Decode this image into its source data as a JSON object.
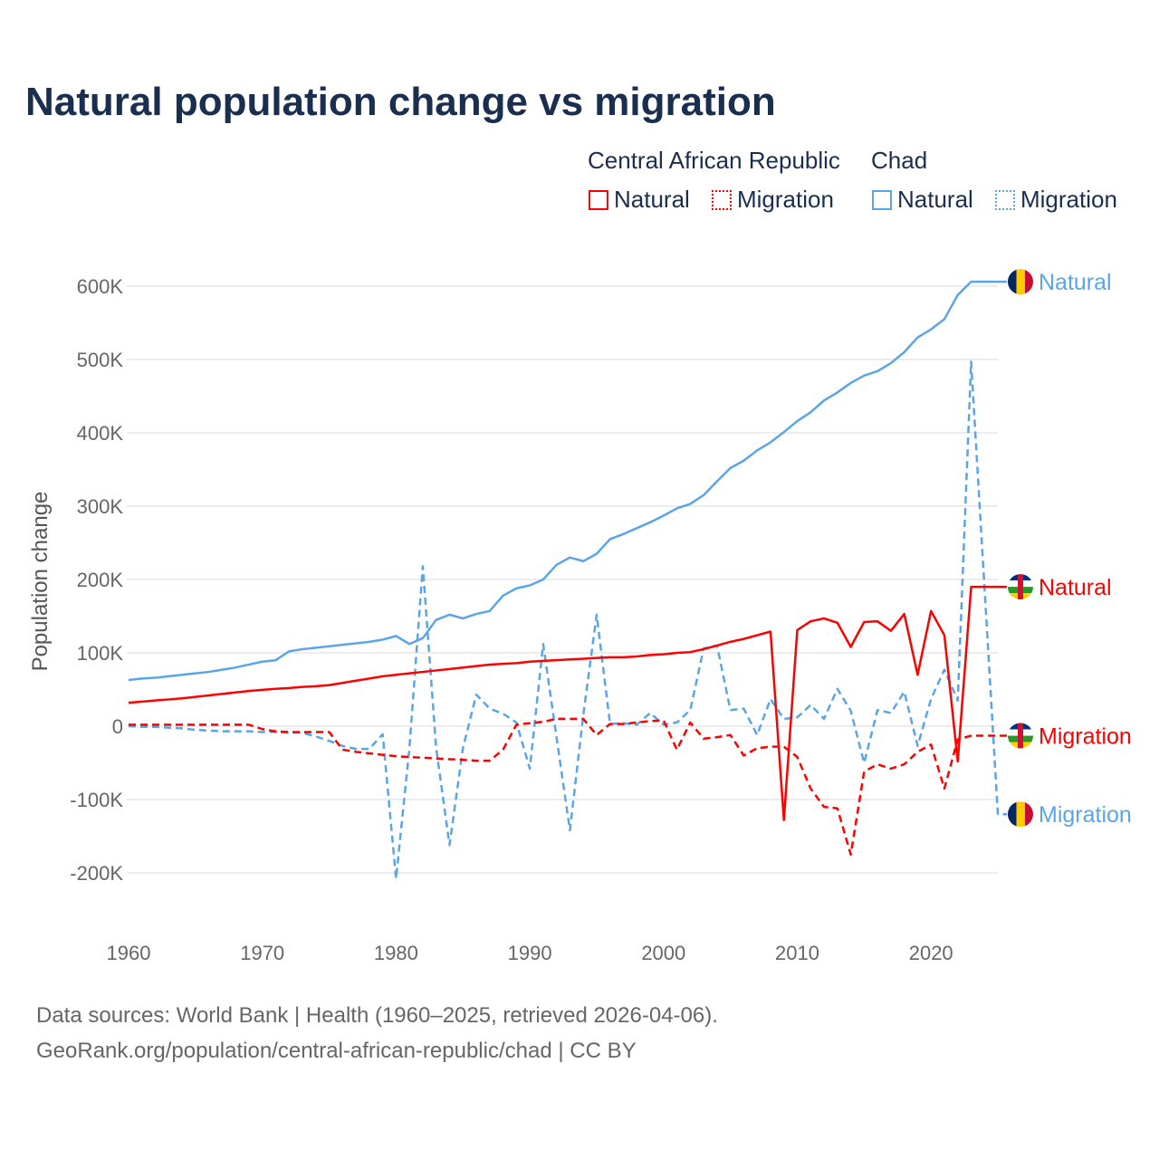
{
  "title": "Natural population change vs migration",
  "legend": {
    "groups": [
      {
        "label": "Central African Republic",
        "items": [
          "Natural",
          "Migration"
        ]
      },
      {
        "label": "Chad",
        "items": [
          "Natural",
          "Migration"
        ]
      }
    ]
  },
  "footer": {
    "line1": "Data sources: World Bank | Health (1960–2025, retrieved 2026-04-06).",
    "line2": "GeoRank.org/population/central-african-republic/chad | CC BY"
  },
  "chart_data": {
    "type": "line",
    "title": "Natural population change vs migration",
    "xlabel": "",
    "ylabel": "Population change",
    "xlim": [
      1960,
      2025
    ],
    "ylim": [
      -250000,
      650000
    ],
    "x_ticks": [
      1960,
      1970,
      1980,
      1990,
      2000,
      2010,
      2020
    ],
    "x_tick_labels": [
      "1960",
      "1970",
      "1980",
      "1990",
      "2000",
      "2010",
      "2020"
    ],
    "y_ticks": [
      -200000,
      -100000,
      0,
      100000,
      200000,
      300000,
      400000,
      500000,
      600000
    ],
    "y_tick_labels": [
      "-200K",
      "-100K",
      "0",
      "100K",
      "200K",
      "300K",
      "400K",
      "500K",
      "600K"
    ],
    "grid": true,
    "legend_position": "top-right",
    "start_year": 1960,
    "series": [
      {
        "name": "Natural",
        "country": "Chad",
        "color": "#5aa5e8",
        "dash": "solid",
        "end_label": "Natural",
        "values_k": [
          63,
          65,
          66,
          68,
          70,
          72,
          74,
          77,
          80,
          84,
          88,
          90,
          102,
          105,
          107,
          109,
          111,
          113,
          115,
          118,
          123,
          112,
          120,
          145,
          152,
          147,
          153,
          157,
          178,
          188,
          192,
          200,
          220,
          230,
          225,
          235,
          255,
          262,
          270,
          278,
          287,
          297,
          303,
          315,
          334,
          352,
          362,
          376,
          387,
          401,
          416,
          428,
          444,
          455,
          468,
          478,
          484,
          495,
          510,
          530,
          541,
          555,
          588,
          606
        ]
      },
      {
        "name": "Migration",
        "country": "Chad",
        "color": "#5aa5e8",
        "dash": "dashed",
        "end_label": "Migration",
        "values_k": [
          0,
          -1,
          -1,
          -2,
          -3,
          -5,
          -6,
          -7,
          -7,
          -7,
          -8,
          -8,
          -9,
          -9,
          -14,
          -20,
          -27,
          -31,
          -31,
          -11,
          -208,
          -30,
          218,
          -30,
          -162,
          -30,
          43,
          24,
          17,
          5,
          -58,
          112,
          -15,
          -142,
          15,
          152,
          3,
          4,
          2,
          18,
          2,
          5,
          22,
          106,
          110,
          22,
          24,
          -12,
          37,
          10,
          12,
          29,
          10,
          51,
          21,
          -50,
          22,
          18,
          47,
          -27,
          37,
          77,
          35,
          497,
          189,
          -120
        ]
      },
      {
        "name": "Natural",
        "country": "Central African Republic",
        "color": "#ff0000",
        "dash": "solid",
        "end_label": "Natural",
        "values_k": [
          32,
          33.5,
          35,
          36.5,
          38,
          40,
          42,
          44,
          46,
          48,
          49.5,
          51,
          52,
          53.5,
          54.5,
          56,
          59,
          62,
          65,
          68,
          70,
          72,
          74,
          76,
          78,
          80,
          82,
          84,
          85,
          86,
          88,
          89,
          90,
          91,
          92,
          93,
          94,
          94,
          95,
          97,
          98,
          100,
          101,
          105,
          110,
          115,
          119,
          124,
          129,
          -128,
          131,
          143,
          147,
          141,
          108,
          142,
          143,
          130,
          153,
          70,
          157,
          124,
          -48,
          190
        ]
      },
      {
        "name": "Migration",
        "country": "Central African Republic",
        "color": "#ff0000",
        "dash": "dashed",
        "end_label": "Migration",
        "values_k": [
          2,
          2,
          2,
          2,
          2,
          2,
          2,
          2,
          2,
          2,
          -4,
          -7,
          -8,
          -8,
          -8,
          -8,
          -32,
          -35,
          -37,
          -39,
          -41,
          -42,
          -43,
          -44,
          -45,
          -46,
          -47,
          -47,
          -32,
          2,
          4,
          6,
          10,
          10,
          10,
          -12,
          3,
          3,
          5,
          7,
          8,
          -32,
          5,
          -17,
          -15,
          -12,
          -40,
          -30,
          -28,
          -28,
          -42,
          -85,
          -110,
          -112,
          -175,
          -62,
          -52,
          -58,
          -52,
          -35,
          -25,
          -85,
          -18,
          -13,
          -13,
          -13
        ]
      }
    ]
  }
}
